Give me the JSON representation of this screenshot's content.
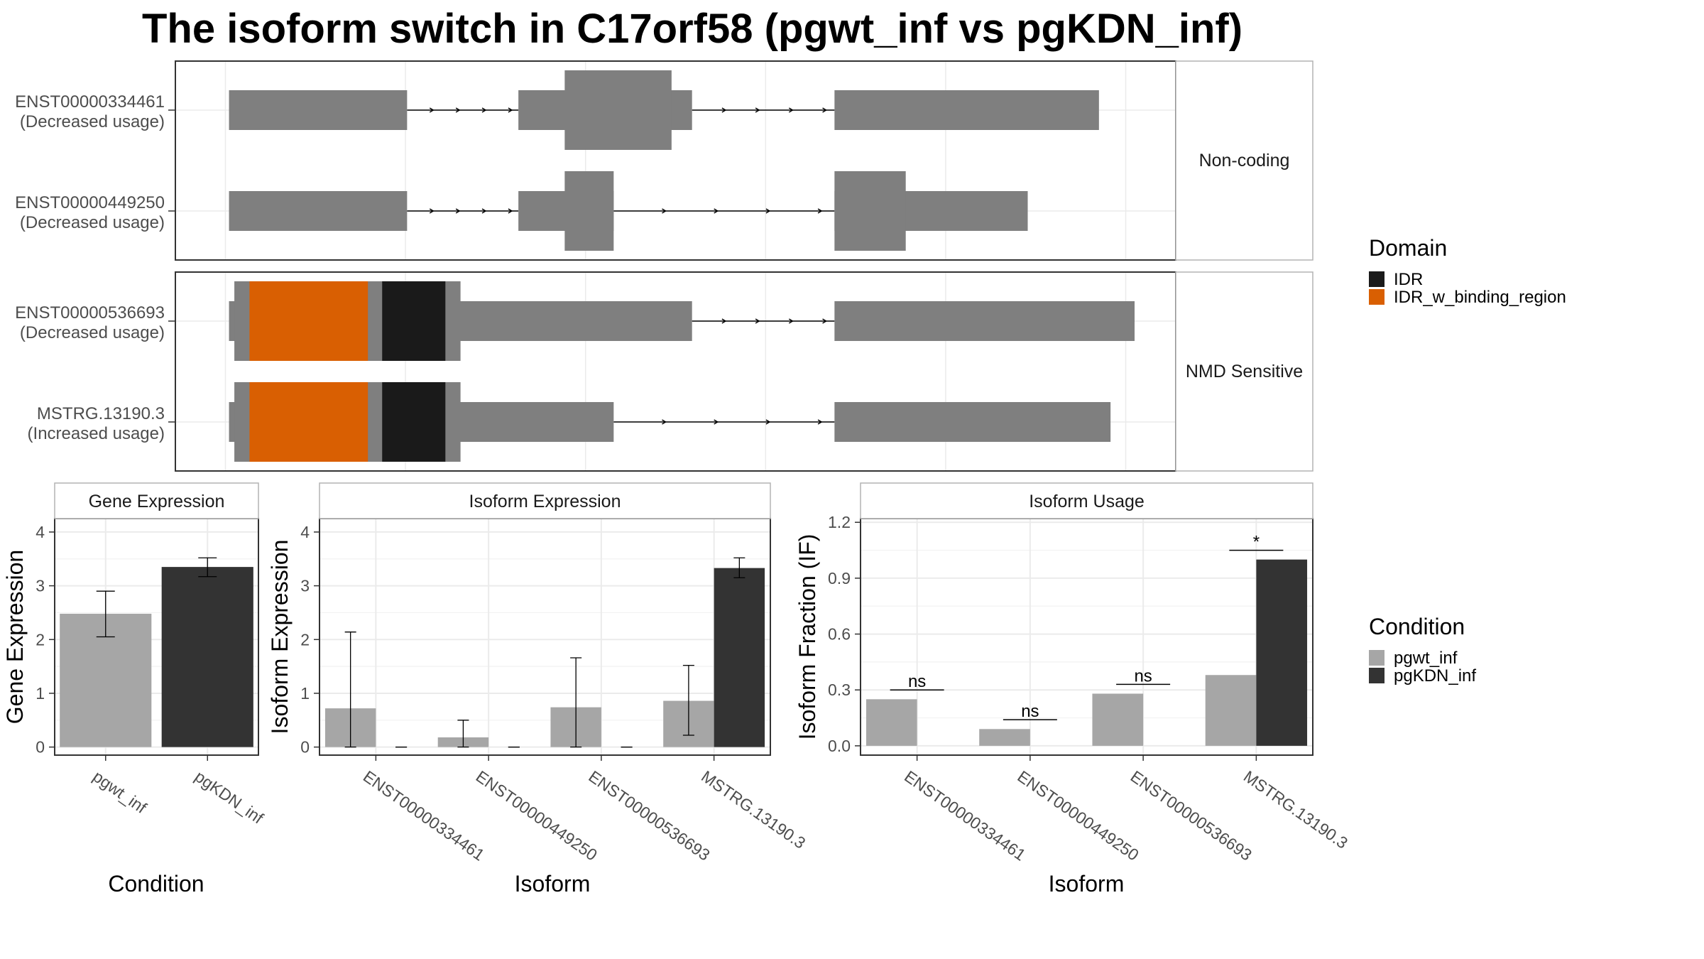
{
  "title": "The isoform switch in C17orf58 (pgwt_inf vs pgKDN_inf)",
  "colors": {
    "exon": "#7f7f7f",
    "intron": "#000000",
    "IDR": "#1a1a1a",
    "IDR_w_binding_region": "#d95f02",
    "pgwt_inf": "#a6a6a6",
    "pgKDN_inf": "#333333",
    "strip_bg": "#ffffff",
    "grid": "#ebebeb",
    "panel_border": "#333333"
  },
  "structure_panel": {
    "facets": [
      {
        "label": "Non-coding",
        "isoforms": [
          {
            "name": "ENST00000334461",
            "usage": "(Decreased usage)",
            "exons": [
              {
                "start": 0.01,
                "end": 0.21,
                "height": "low"
              },
              {
                "start": 0.335,
                "end": 0.53,
                "height": "low"
              },
              {
                "start": 0.387,
                "end": 0.507,
                "height": "high"
              },
              {
                "start": 0.69,
                "end": 0.987,
                "height": "low"
              }
            ],
            "domains": []
          },
          {
            "name": "ENST00000449250",
            "usage": "(Decreased usage)",
            "exons": [
              {
                "start": 0.01,
                "end": 0.21,
                "height": "low"
              },
              {
                "start": 0.335,
                "end": 0.442,
                "height": "low"
              },
              {
                "start": 0.387,
                "end": 0.442,
                "height": "high"
              },
              {
                "start": 0.69,
                "end": 0.907,
                "height": "low"
              },
              {
                "start": 0.69,
                "end": 0.77,
                "height": "high"
              }
            ],
            "domains": []
          }
        ]
      },
      {
        "label": "NMD Sensitive",
        "isoforms": [
          {
            "name": "ENST00000536693",
            "usage": "(Decreased usage)",
            "exons": [
              {
                "start": 0.01,
                "end": 0.53,
                "height": "low"
              },
              {
                "start": 0.016,
                "end": 0.27,
                "height": "high"
              },
              {
                "start": 0.69,
                "end": 1.027,
                "height": "low"
              }
            ],
            "domains": [
              {
                "type": "IDR_w_binding_region",
                "start": 0.033,
                "end": 0.166
              },
              {
                "type": "IDR",
                "start": 0.182,
                "end": 0.253
              }
            ]
          },
          {
            "name": "MSTRG.13190.3",
            "usage": "(Increased usage)",
            "exons": [
              {
                "start": 0.01,
                "end": 0.442,
                "height": "low"
              },
              {
                "start": 0.016,
                "end": 0.27,
                "height": "high"
              },
              {
                "start": 0.69,
                "end": 1.0,
                "height": "low"
              }
            ],
            "domains": [
              {
                "type": "IDR_w_binding_region",
                "start": 0.033,
                "end": 0.166
              },
              {
                "type": "IDR",
                "start": 0.182,
                "end": 0.253
              }
            ]
          }
        ]
      }
    ]
  },
  "legend_domain": {
    "title": "Domain",
    "items": [
      "IDR",
      "IDR_w_binding_region"
    ]
  },
  "legend_condition": {
    "title": "Condition",
    "items": [
      "pgwt_inf",
      "pgKDN_inf"
    ]
  },
  "chart_data": [
    {
      "type": "bar",
      "strip": "Gene Expression",
      "xlabel": "Condition",
      "ylabel": "Gene Expression",
      "categories": [
        "pgwt_inf",
        "pgKDN_inf"
      ],
      "values": [
        2.48,
        3.35
      ],
      "errors": [
        [
          2.05,
          2.9
        ],
        [
          3.17,
          3.52
        ]
      ],
      "ylim": [
        -0.15,
        4.25
      ],
      "yticks": [
        0,
        1,
        2,
        3,
        4
      ],
      "ytick_labels": [
        "0",
        "1",
        "2",
        "3",
        "4"
      ]
    },
    {
      "type": "bar",
      "strip": "Isoform Expression",
      "xlabel": "Isoform",
      "ylabel": "Isoform Expression",
      "categories": [
        "ENST00000334461",
        "ENST00000449250",
        "ENST00000536693",
        "MSTRG.13190.3"
      ],
      "series": [
        {
          "name": "pgwt_inf",
          "values": [
            0.72,
            0.18,
            0.74,
            0.86
          ],
          "errors": [
            [
              0.0,
              2.14
            ],
            [
              0.0,
              0.5
            ],
            [
              0.0,
              1.66
            ],
            [
              0.22,
              1.52
            ]
          ]
        },
        {
          "name": "pgKDN_inf",
          "values": [
            0.0,
            0.0,
            0.0,
            3.33
          ],
          "errors": [
            [
              0.0,
              0.0
            ],
            [
              0.0,
              0.0
            ],
            [
              0.0,
              0.0
            ],
            [
              3.15,
              3.52
            ]
          ]
        }
      ],
      "ylim": [
        -0.15,
        4.25
      ],
      "yticks": [
        0,
        1,
        2,
        3,
        4
      ],
      "ytick_labels": [
        "0",
        "1",
        "2",
        "3",
        "4"
      ]
    },
    {
      "type": "bar",
      "strip": "Isoform Usage",
      "xlabel": "Isoform",
      "ylabel": "Isoform Fraction (IF)",
      "categories": [
        "ENST00000334461",
        "ENST00000449250",
        "ENST00000536693",
        "MSTRG.13190.3"
      ],
      "series": [
        {
          "name": "pgwt_inf",
          "values": [
            0.25,
            0.09,
            0.28,
            0.38
          ]
        },
        {
          "name": "pgKDN_inf",
          "values": [
            0.0,
            0.0,
            0.0,
            1.0
          ]
        }
      ],
      "significance": [
        "ns",
        "ns",
        "ns",
        "*"
      ],
      "significance_y": [
        0.3,
        0.14,
        0.33,
        1.05
      ],
      "ylim": [
        -0.05,
        1.22
      ],
      "yticks": [
        0.0,
        0.3,
        0.6,
        0.9,
        1.2
      ],
      "ytick_labels": [
        "0.0",
        "0.3",
        "0.6",
        "0.9",
        "1.2"
      ]
    }
  ]
}
